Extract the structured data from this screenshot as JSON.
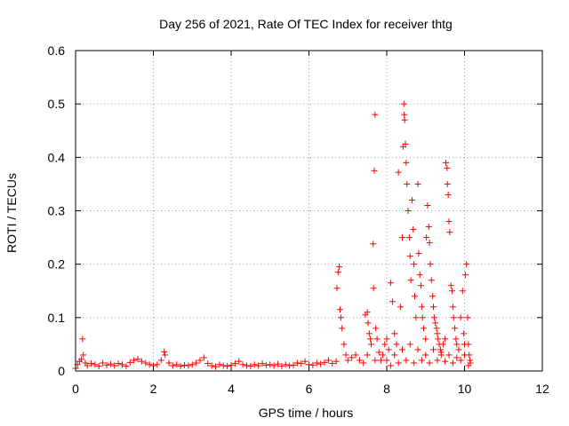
{
  "chart_data": {
    "type": "scatter",
    "title": "Day 256 of 2021, Rate Of TEC Index for receiver thtg",
    "xlabel": "GPS time / hours",
    "ylabel": "ROTI / TECUs",
    "xlim": [
      0,
      12
    ],
    "ylim": [
      0,
      0.6
    ],
    "xticks": [
      0,
      2,
      4,
      6,
      8,
      10,
      12
    ],
    "yticks": [
      0,
      0.1,
      0.2,
      0.3,
      0.4,
      0.5,
      0.6
    ],
    "xtick_labels": [
      "0",
      "2",
      "4",
      "6",
      "8",
      "10",
      "12"
    ],
    "ytick_labels": [
      "0",
      "0.1",
      "0.2",
      "0.3",
      "0.4",
      "0.5",
      "0.6"
    ],
    "grid": true,
    "marker": "plus",
    "series": [
      {
        "name": "ROTI",
        "color": "#ff0000",
        "points": [
          [
            0.0,
            0.005
          ],
          [
            0.05,
            0.012
          ],
          [
            0.1,
            0.018
          ],
          [
            0.15,
            0.022
          ],
          [
            0.2,
            0.03
          ],
          [
            0.18,
            0.06
          ],
          [
            0.25,
            0.015
          ],
          [
            0.3,
            0.01
          ],
          [
            0.4,
            0.014
          ],
          [
            0.5,
            0.012
          ],
          [
            0.6,
            0.009
          ],
          [
            0.7,
            0.015
          ],
          [
            0.8,
            0.011
          ],
          [
            0.9,
            0.013
          ],
          [
            1.0,
            0.01
          ],
          [
            1.1,
            0.014
          ],
          [
            1.2,
            0.012
          ],
          [
            1.3,
            0.009
          ],
          [
            1.4,
            0.016
          ],
          [
            1.5,
            0.02
          ],
          [
            1.6,
            0.022
          ],
          [
            1.7,
            0.018
          ],
          [
            1.8,
            0.015
          ],
          [
            1.9,
            0.012
          ],
          [
            2.0,
            0.01
          ],
          [
            2.1,
            0.012
          ],
          [
            2.2,
            0.02
          ],
          [
            2.28,
            0.036
          ],
          [
            2.3,
            0.03
          ],
          [
            2.4,
            0.015
          ],
          [
            2.5,
            0.01
          ],
          [
            2.6,
            0.012
          ],
          [
            2.7,
            0.009
          ],
          [
            2.8,
            0.011
          ],
          [
            2.9,
            0.01
          ],
          [
            3.0,
            0.012
          ],
          [
            3.1,
            0.015
          ],
          [
            3.2,
            0.02
          ],
          [
            3.3,
            0.025
          ],
          [
            3.4,
            0.014
          ],
          [
            3.5,
            0.01
          ],
          [
            3.6,
            0.008
          ],
          [
            3.7,
            0.012
          ],
          [
            3.8,
            0.01
          ],
          [
            3.9,
            0.009
          ],
          [
            4.0,
            0.011
          ],
          [
            4.1,
            0.014
          ],
          [
            4.2,
            0.018
          ],
          [
            4.3,
            0.012
          ],
          [
            4.4,
            0.01
          ],
          [
            4.5,
            0.009
          ],
          [
            4.6,
            0.012
          ],
          [
            4.7,
            0.01
          ],
          [
            4.8,
            0.014
          ],
          [
            4.9,
            0.011
          ],
          [
            5.0,
            0.012
          ],
          [
            5.1,
            0.01
          ],
          [
            5.2,
            0.013
          ],
          [
            5.3,
            0.009
          ],
          [
            5.4,
            0.012
          ],
          [
            5.5,
            0.01
          ],
          [
            5.6,
            0.011
          ],
          [
            5.7,
            0.015
          ],
          [
            5.8,
            0.014
          ],
          [
            5.9,
            0.018
          ],
          [
            6.0,
            0.012
          ],
          [
            6.1,
            0.011
          ],
          [
            6.2,
            0.015
          ],
          [
            6.3,
            0.013
          ],
          [
            6.4,
            0.016
          ],
          [
            6.5,
            0.02
          ],
          [
            6.6,
            0.014
          ],
          [
            6.7,
            0.018
          ],
          [
            6.72,
            0.155
          ],
          [
            6.75,
            0.185
          ],
          [
            6.78,
            0.195
          ],
          [
            6.8,
            0.115
          ],
          [
            6.82,
            0.1
          ],
          [
            6.85,
            0.08
          ],
          [
            6.9,
            0.05
          ],
          [
            6.95,
            0.03
          ],
          [
            7.0,
            0.02
          ],
          [
            7.1,
            0.025
          ],
          [
            7.2,
            0.03
          ],
          [
            7.3,
            0.02
          ],
          [
            7.4,
            0.015
          ],
          [
            7.45,
            0.105
          ],
          [
            7.5,
            0.11
          ],
          [
            7.52,
            0.09
          ],
          [
            7.55,
            0.07
          ],
          [
            7.58,
            0.06
          ],
          [
            7.6,
            0.05
          ],
          [
            7.65,
            0.238
          ],
          [
            7.66,
            0.155
          ],
          [
            7.68,
            0.375
          ],
          [
            7.7,
            0.48
          ],
          [
            7.72,
            0.08
          ],
          [
            7.75,
            0.06
          ],
          [
            7.8,
            0.035
          ],
          [
            7.85,
            0.02
          ],
          [
            7.9,
            0.03
          ],
          [
            7.95,
            0.05
          ],
          [
            8.0,
            0.06
          ],
          [
            8.05,
            0.04
          ],
          [
            8.1,
            0.165
          ],
          [
            8.15,
            0.13
          ],
          [
            8.2,
            0.07
          ],
          [
            8.25,
            0.05
          ],
          [
            8.3,
            0.372
          ],
          [
            8.35,
            0.12
          ],
          [
            8.4,
            0.25
          ],
          [
            8.42,
            0.42
          ],
          [
            8.44,
            0.5
          ],
          [
            8.45,
            0.48
          ],
          [
            8.46,
            0.47
          ],
          [
            8.48,
            0.425
          ],
          [
            8.5,
            0.39
          ],
          [
            8.52,
            0.35
          ],
          [
            8.55,
            0.3
          ],
          [
            8.58,
            0.25
          ],
          [
            8.6,
            0.215
          ],
          [
            8.62,
            0.17
          ],
          [
            8.65,
            0.32
          ],
          [
            8.68,
            0.265
          ],
          [
            8.7,
            0.2
          ],
          [
            8.72,
            0.14
          ],
          [
            8.75,
            0.1
          ],
          [
            8.8,
            0.35
          ],
          [
            8.82,
            0.22
          ],
          [
            8.85,
            0.18
          ],
          [
            8.88,
            0.16
          ],
          [
            8.9,
            0.12
          ],
          [
            8.92,
            0.1
          ],
          [
            8.95,
            0.08
          ],
          [
            9.0,
            0.06
          ],
          [
            9.02,
            0.25
          ],
          [
            9.05,
            0.31
          ],
          [
            9.08,
            0.27
          ],
          [
            9.1,
            0.24
          ],
          [
            9.12,
            0.2
          ],
          [
            9.15,
            0.17
          ],
          [
            9.18,
            0.14
          ],
          [
            9.2,
            0.12
          ],
          [
            9.22,
            0.1
          ],
          [
            9.25,
            0.09
          ],
          [
            9.28,
            0.08
          ],
          [
            9.3,
            0.07
          ],
          [
            9.32,
            0.06
          ],
          [
            9.35,
            0.05
          ],
          [
            9.38,
            0.04
          ],
          [
            9.4,
            0.03
          ],
          [
            9.45,
            0.05
          ],
          [
            9.5,
            0.06
          ],
          [
            9.52,
            0.39
          ],
          [
            9.55,
            0.38
          ],
          [
            9.56,
            0.35
          ],
          [
            9.58,
            0.33
          ],
          [
            9.6,
            0.28
          ],
          [
            9.62,
            0.26
          ],
          [
            9.65,
            0.16
          ],
          [
            9.68,
            0.15
          ],
          [
            9.7,
            0.12
          ],
          [
            9.72,
            0.1
          ],
          [
            9.75,
            0.08
          ],
          [
            9.78,
            0.06
          ],
          [
            9.8,
            0.05
          ],
          [
            9.85,
            0.04
          ],
          [
            9.9,
            0.1
          ],
          [
            9.95,
            0.15
          ],
          [
            9.98,
            0.07
          ],
          [
            10.0,
            0.05
          ],
          [
            10.02,
            0.18
          ],
          [
            10.05,
            0.2
          ],
          [
            10.08,
            0.1
          ],
          [
            10.1,
            0.05
          ],
          [
            10.12,
            0.03
          ],
          [
            10.14,
            0.02
          ],
          [
            10.15,
            0.015
          ],
          [
            8.0,
            0.02
          ],
          [
            8.2,
            0.03
          ],
          [
            8.4,
            0.04
          ],
          [
            8.6,
            0.05
          ],
          [
            8.8,
            0.04
          ],
          [
            9.0,
            0.03
          ],
          [
            9.2,
            0.04
          ],
          [
            9.4,
            0.035
          ],
          [
            9.6,
            0.03
          ],
          [
            9.8,
            0.025
          ],
          [
            10.0,
            0.03
          ],
          [
            8.1,
            0.01
          ],
          [
            8.3,
            0.015
          ],
          [
            8.5,
            0.02
          ],
          [
            8.7,
            0.015
          ],
          [
            8.9,
            0.02
          ],
          [
            9.1,
            0.015
          ],
          [
            9.3,
            0.02
          ],
          [
            9.5,
            0.018
          ],
          [
            9.7,
            0.015
          ],
          [
            9.9,
            0.02
          ],
          [
            10.1,
            0.01
          ],
          [
            7.5,
            0.03
          ],
          [
            7.7,
            0.02
          ]
        ]
      }
    ]
  }
}
